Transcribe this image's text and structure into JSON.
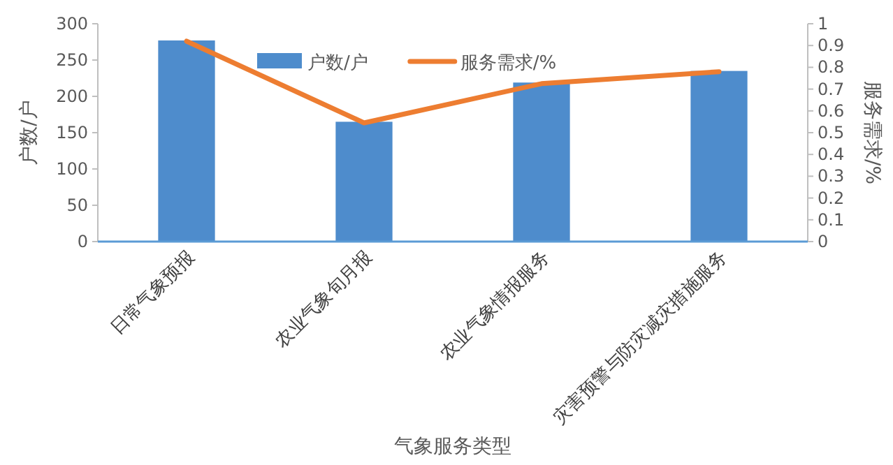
{
  "chart_data": {
    "type": "bar",
    "xlabel": "气象服务类型",
    "ylabel": "户数/户",
    "y2label": "服务需求/%",
    "categories": [
      "日常气象预报",
      "农业气象旬月报",
      "农业气象情报服务",
      "灾害预警与防灾减灾措施服务"
    ],
    "series": [
      {
        "name": "户数/户",
        "color": "#4e8ccc",
        "values": [
          277,
          165,
          219,
          235
        ]
      },
      {
        "name": "服务需求/%",
        "type": "line",
        "axis": "y2",
        "color": "#ed7d31",
        "values": [
          0.92,
          0.545,
          0.725,
          0.78
        ]
      }
    ],
    "ylim": [
      0,
      300
    ],
    "yticks": [
      0,
      50,
      100,
      150,
      200,
      250,
      300
    ],
    "y2lim": [
      0,
      1
    ],
    "y2ticks": [
      0,
      0.1,
      0.2,
      0.3,
      0.4,
      0.5,
      0.6,
      0.7,
      0.8,
      0.9,
      1
    ],
    "legend": "top",
    "grid": false
  }
}
